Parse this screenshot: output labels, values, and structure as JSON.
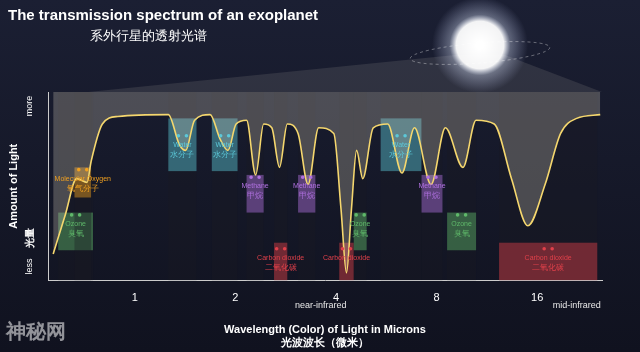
{
  "chart_data": {
    "type": "line",
    "title": "The transmission spectrum of an exoplanet",
    "subtitle": "系外行星的透射光谱",
    "x_label": "Wavelength (Color) of Light in Microns",
    "x_label_zh": "光波波长（微米）",
    "y_label": "Amount of Light",
    "y_label_zh": "光量",
    "y_low_label": "less",
    "y_high_label": "more",
    "x": [
      0.57,
      0.62,
      0.67,
      0.72,
      0.74,
      0.8,
      0.89,
      1.26,
      1.36,
      1.42,
      1.51,
      1.68,
      1.8,
      1.9,
      2.01,
      2.16,
      2.3,
      2.43,
      2.57,
      2.71,
      2.86,
      3.08,
      3.3,
      3.55,
      3.94,
      4.14,
      4.3,
      4.45,
      4.61,
      4.81,
      5.17,
      5.71,
      6.3,
      6.87,
      7.7,
      8.5,
      9.59,
      10.5,
      11.9,
      13.4,
      15.0,
      16.9,
      18.8,
      21.0,
      24.7
    ],
    "values": [
      0.14,
      0.35,
      0.54,
      0.52,
      0.63,
      0.83,
      0.87,
      0.88,
      0.72,
      0.69,
      0.85,
      0.88,
      0.75,
      0.69,
      0.83,
      0.85,
      0.56,
      0.83,
      0.81,
      0.6,
      0.83,
      0.78,
      0.51,
      0.81,
      0.78,
      0.38,
      0.04,
      0.38,
      0.69,
      0.54,
      0.81,
      0.83,
      0.57,
      0.81,
      0.51,
      0.81,
      0.6,
      0.85,
      0.83,
      0.54,
      0.29,
      0.51,
      0.78,
      0.86,
      0.88
    ],
    "color": "#f5d76e",
    "log": "x",
    "xlim": [
      0.55,
      25
    ],
    "xticks": [
      1,
      2,
      4,
      8,
      16
    ],
    "ylim": [
      0,
      1
    ],
    "tick_labels": "x",
    "grid": false,
    "bands": [
      {
        "name": "Ozone",
        "name_zh": "臭氧",
        "from": 0.59,
        "to": 0.75,
        "color": "#5fb86a"
      },
      {
        "name": "Molecular Oxygen",
        "name_zh": "氧气分子",
        "from": 0.66,
        "to": 0.74,
        "color": "#f0a020"
      },
      {
        "name": "Water",
        "name_zh": "水分子",
        "from": 1.26,
        "to": 1.53,
        "color": "#5cc8d8"
      },
      {
        "name": "Water",
        "name_zh": "水分子",
        "from": 1.7,
        "to": 2.03,
        "color": "#5cc8d8"
      },
      {
        "name": "Methane",
        "name_zh": "甲烷",
        "from": 2.16,
        "to": 2.43,
        "color": "#b070e0"
      },
      {
        "name": "Carbon dioxide",
        "name_zh": "二氧化碳",
        "from": 2.61,
        "to": 2.86,
        "color": "#e0404a"
      },
      {
        "name": "Methane",
        "name_zh": "甲烷",
        "from": 3.08,
        "to": 3.47,
        "color": "#b070e0"
      },
      {
        "name": "Carbon dioxide",
        "from": 4.09,
        "to": 4.52,
        "color": "#e0404a"
      },
      {
        "name": "Ozone",
        "name_zh": "臭氧",
        "from": 4.52,
        "to": 4.94,
        "color": "#5fb86a"
      },
      {
        "name": "Water",
        "name_zh": "水分子",
        "from": 5.44,
        "to": 7.21,
        "color": "#5cc8d8"
      },
      {
        "name": "Methane",
        "name_zh": "甲烷",
        "from": 7.21,
        "to": 8.33,
        "color": "#b070e0"
      },
      {
        "name": "Ozone",
        "name_zh": "臭氧",
        "from": 8.6,
        "to": 10.5,
        "color": "#5fb86a"
      },
      {
        "name": "Carbon dioxide",
        "name_zh": "二氧化碳",
        "from": 12.3,
        "to": 24.2,
        "color": "#e0404a"
      }
    ],
    "annotations": [
      {
        "text": "near-infrared",
        "x": 3.6
      },
      {
        "text": "mid-infrared",
        "x": 21
      }
    ],
    "watermark": "神秘网"
  }
}
